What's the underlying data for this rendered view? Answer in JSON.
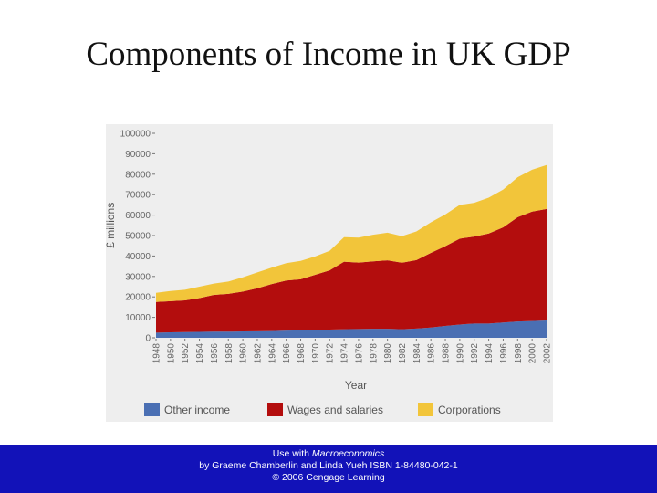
{
  "slide": {
    "title": "Components of Income in UK GDP"
  },
  "footer": {
    "line1_prefix": "Use with ",
    "line1_book": "Macroeconomics",
    "line2": "by Graeme Chamberlin and Linda Yueh ISBN 1-84480-042-1",
    "line3": "© 2006 Cengage Learning"
  },
  "chart_data": {
    "type": "area",
    "stacked": true,
    "xlabel": "Year",
    "ylabel": "£ millions",
    "ylim": [
      0,
      100000
    ],
    "yticks": [
      0,
      10000,
      20000,
      30000,
      40000,
      50000,
      60000,
      70000,
      80000,
      90000,
      100000
    ],
    "xticks": [
      1948,
      1950,
      1952,
      1954,
      1956,
      1958,
      1960,
      1962,
      1964,
      1966,
      1968,
      1970,
      1972,
      1974,
      1976,
      1978,
      1980,
      1982,
      1984,
      1986,
      1988,
      1990,
      1992,
      1994,
      1996,
      1998,
      2000,
      2002
    ],
    "legend_position": "bottom",
    "x": [
      1948,
      1950,
      1952,
      1954,
      1956,
      1958,
      1960,
      1962,
      1964,
      1966,
      1968,
      1970,
      1972,
      1974,
      1976,
      1978,
      1980,
      1982,
      1984,
      1986,
      1988,
      1990,
      1992,
      1994,
      1996,
      1998,
      2000,
      2002
    ],
    "series": [
      {
        "name": "Other income",
        "color": "#4a6fb3",
        "values": [
          2500,
          2700,
          2800,
          2900,
          3000,
          3000,
          3100,
          3200,
          3300,
          3500,
          3600,
          3800,
          4000,
          4200,
          4300,
          4400,
          4400,
          4200,
          4500,
          5000,
          5800,
          6500,
          7000,
          7000,
          7500,
          8000,
          8200,
          8500
        ]
      },
      {
        "name": "Wages and salaries",
        "color": "#b30d0d",
        "values": [
          15000,
          15200,
          15500,
          16500,
          18000,
          18500,
          19500,
          21000,
          23000,
          24500,
          25000,
          27000,
          29000,
          33000,
          32500,
          33000,
          33500,
          32500,
          33500,
          36500,
          39000,
          42000,
          42500,
          44000,
          46500,
          51000,
          53500,
          54500
        ]
      },
      {
        "name": "Corporations",
        "color": "#f2c53a",
        "values": [
          4500,
          5000,
          5200,
          5600,
          5500,
          6000,
          7000,
          7800,
          8000,
          8500,
          9000,
          9000,
          9500,
          12000,
          12200,
          13000,
          13500,
          13000,
          14000,
          15000,
          15500,
          16500,
          16500,
          17500,
          18500,
          19500,
          20500,
          21500
        ]
      }
    ]
  }
}
